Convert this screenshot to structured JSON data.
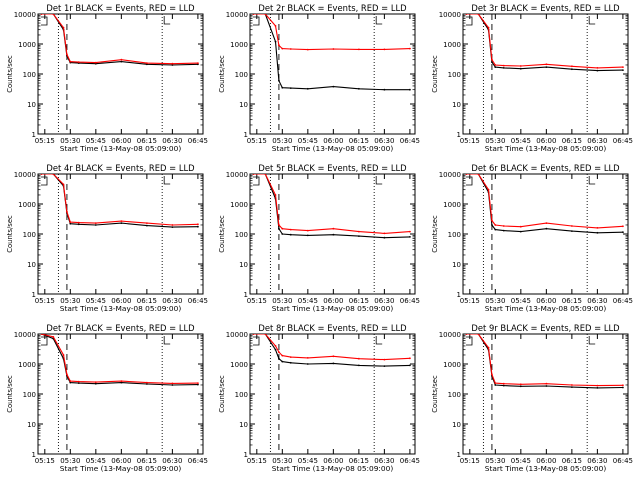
{
  "colors": {
    "events": "#000000",
    "lld": "#ff0000",
    "background": "#ffffff"
  },
  "chart_data": [
    {
      "type": "line",
      "title": "Det 1r BLACK = Events, RED = LLD",
      "xlabel": "Start Time (13-May-08 05:09:00)",
      "ylabel": "Counts/sec",
      "x_ticks": [
        "05:15",
        "05:30",
        "05:45",
        "06:00",
        "06:15",
        "06:30",
        "06:45"
      ],
      "y_ticks": [
        "1",
        "10",
        "100",
        "1000",
        "10000"
      ],
      "y_scale": "log",
      "ylim": [
        1,
        10000
      ],
      "x": [
        "05:13",
        "05:20",
        "05:26",
        "05:28",
        "05:30",
        "05:35",
        "05:45",
        "06:00",
        "06:15",
        "06:30",
        "06:45"
      ],
      "series": [
        {
          "name": "Events",
          "color": "#000000",
          "values": [
            10000,
            10000,
            3000,
            400,
            240,
            230,
            220,
            260,
            210,
            200,
            210
          ]
        },
        {
          "name": "LLD",
          "color": "#ff0000",
          "values": [
            10000,
            10000,
            3500,
            450,
            260,
            250,
            240,
            300,
            230,
            220,
            230
          ]
        }
      ]
    },
    {
      "type": "line",
      "title": "Det 2r BLACK = Events, RED = LLD",
      "xlabel": "Start Time (13-May-08 05:09:00)",
      "ylabel": "Counts/sec",
      "x_ticks": [
        "05:15",
        "05:30",
        "05:45",
        "06:00",
        "06:15",
        "06:30",
        "06:45"
      ],
      "y_ticks": [
        "1",
        "10",
        "100",
        "1000",
        "10000"
      ],
      "y_scale": "log",
      "ylim": [
        1,
        10000
      ],
      "x": [
        "05:13",
        "05:20",
        "05:26",
        "05:28",
        "05:30",
        "05:35",
        "05:45",
        "06:00",
        "06:15",
        "06:30",
        "06:45"
      ],
      "series": [
        {
          "name": "Events",
          "color": "#000000",
          "values": [
            10000,
            10000,
            1200,
            60,
            35,
            34,
            32,
            38,
            32,
            30,
            30
          ]
        },
        {
          "name": "LLD",
          "color": "#ff0000",
          "values": [
            10000,
            10000,
            4000,
            900,
            700,
            680,
            650,
            680,
            660,
            660,
            700
          ]
        }
      ]
    },
    {
      "type": "line",
      "title": "Det 3r BLACK = Events, RED = LLD",
      "xlabel": "Start Time (13-May-08 05:09:00)",
      "ylabel": "Counts/sec",
      "x_ticks": [
        "05:15",
        "05:30",
        "05:45",
        "06:00",
        "06:15",
        "06:30",
        "06:45"
      ],
      "y_ticks": [
        "1",
        "10",
        "100",
        "1000",
        "10000"
      ],
      "y_scale": "log",
      "ylim": [
        1,
        10000
      ],
      "x": [
        "05:13",
        "05:20",
        "05:26",
        "05:28",
        "05:30",
        "05:35",
        "05:45",
        "06:00",
        "06:15",
        "06:30",
        "06:45"
      ],
      "series": [
        {
          "name": "Events",
          "color": "#000000",
          "values": [
            10000,
            10000,
            3000,
            250,
            170,
            160,
            150,
            170,
            145,
            130,
            135
          ]
        },
        {
          "name": "LLD",
          "color": "#ff0000",
          "values": [
            10000,
            10000,
            3500,
            300,
            200,
            190,
            185,
            210,
            180,
            160,
            170
          ]
        }
      ]
    },
    {
      "type": "line",
      "title": "Det 4r BLACK = Events, RED = LLD",
      "xlabel": "Start Time (13-May-08 05:09:00)",
      "ylabel": "Counts/sec",
      "x_ticks": [
        "05:15",
        "05:30",
        "05:45",
        "06:00",
        "06:15",
        "06:30",
        "06:45"
      ],
      "y_ticks": [
        "1",
        "10",
        "100",
        "1000",
        "10000"
      ],
      "y_scale": "log",
      "ylim": [
        1,
        10000
      ],
      "x": [
        "05:13",
        "05:20",
        "05:26",
        "05:28",
        "05:30",
        "05:35",
        "05:45",
        "06:00",
        "06:15",
        "06:30",
        "06:45"
      ],
      "series": [
        {
          "name": "Events",
          "color": "#000000",
          "values": [
            10000,
            10000,
            4000,
            500,
            220,
            210,
            200,
            230,
            190,
            170,
            175
          ]
        },
        {
          "name": "LLD",
          "color": "#ff0000",
          "values": [
            10000,
            10000,
            4500,
            550,
            250,
            240,
            230,
            270,
            230,
            200,
            210
          ]
        }
      ]
    },
    {
      "type": "line",
      "title": "Det 5r BLACK = Events, RED = LLD",
      "xlabel": "Start Time (13-May-08 05:09:00)",
      "ylabel": "Counts/sec",
      "x_ticks": [
        "05:15",
        "05:30",
        "05:45",
        "06:00",
        "06:15",
        "06:30",
        "06:45"
      ],
      "y_ticks": [
        "1",
        "10",
        "100",
        "1000",
        "10000"
      ],
      "y_scale": "log",
      "ylim": [
        1,
        10000
      ],
      "x": [
        "05:13",
        "05:20",
        "05:26",
        "05:28",
        "05:30",
        "05:35",
        "05:45",
        "06:00",
        "06:15",
        "06:30",
        "06:45"
      ],
      "series": [
        {
          "name": "Events",
          "color": "#000000",
          "values": [
            10000,
            10000,
            1500,
            150,
            100,
            95,
            90,
            95,
            85,
            75,
            80
          ]
        },
        {
          "name": "LLD",
          "color": "#ff0000",
          "values": [
            10000,
            10000,
            2000,
            200,
            150,
            140,
            130,
            150,
            120,
            105,
            120
          ]
        }
      ]
    },
    {
      "type": "line",
      "title": "Det 6r BLACK = Events, RED = LLD",
      "xlabel": "Start Time (13-May-08 05:09:00)",
      "ylabel": "Counts/sec",
      "x_ticks": [
        "05:15",
        "05:30",
        "05:45",
        "06:00",
        "06:15",
        "06:30",
        "06:45"
      ],
      "y_ticks": [
        "1",
        "10",
        "100",
        "1000",
        "10000"
      ],
      "y_scale": "log",
      "ylim": [
        1,
        10000
      ],
      "x": [
        "05:13",
        "05:20",
        "05:26",
        "05:28",
        "05:30",
        "05:35",
        "05:45",
        "06:00",
        "06:15",
        "06:30",
        "06:45"
      ],
      "series": [
        {
          "name": "Events",
          "color": "#000000",
          "values": [
            10000,
            10000,
            2500,
            200,
            140,
            130,
            120,
            150,
            125,
            110,
            115
          ]
        },
        {
          "name": "LLD",
          "color": "#ff0000",
          "values": [
            10000,
            10000,
            3000,
            280,
            200,
            185,
            175,
            230,
            185,
            160,
            180
          ]
        }
      ]
    },
    {
      "type": "line",
      "title": "Det 7r BLACK = Events, RED = LLD",
      "xlabel": "Start Time (13-May-08 05:09:00)",
      "ylabel": "Counts/sec",
      "x_ticks": [
        "05:15",
        "05:30",
        "05:45",
        "06:00",
        "06:15",
        "06:30",
        "06:45"
      ],
      "y_ticks": [
        "1",
        "10",
        "100",
        "1000",
        "10000"
      ],
      "y_scale": "log",
      "ylim": [
        1,
        10000
      ],
      "x": [
        "05:13",
        "05:20",
        "05:26",
        "05:28",
        "05:30",
        "05:35",
        "05:45",
        "06:00",
        "06:15",
        "06:30",
        "06:45"
      ],
      "series": [
        {
          "name": "Events",
          "color": "#000000",
          "values": [
            10000,
            7000,
            1500,
            400,
            240,
            230,
            220,
            240,
            215,
            200,
            205
          ]
        },
        {
          "name": "LLD",
          "color": "#ff0000",
          "values": [
            10000,
            8000,
            2000,
            450,
            270,
            260,
            250,
            270,
            240,
            225,
            230
          ]
        }
      ]
    },
    {
      "type": "line",
      "title": "Det 8r BLACK = Events, RED = LLD",
      "xlabel": "Start Time (13-May-08 05:09:00)",
      "ylabel": "Counts/sec",
      "x_ticks": [
        "05:15",
        "05:30",
        "05:45",
        "06:00",
        "06:15",
        "06:30",
        "06:45"
      ],
      "y_ticks": [
        "1",
        "10",
        "100",
        "1000",
        "10000"
      ],
      "y_scale": "log",
      "ylim": [
        1,
        10000
      ],
      "x": [
        "05:13",
        "05:20",
        "05:26",
        "05:28",
        "05:30",
        "05:35",
        "05:45",
        "06:00",
        "06:15",
        "06:30",
        "06:45"
      ],
      "series": [
        {
          "name": "Events",
          "color": "#000000",
          "values": [
            10000,
            10000,
            3000,
            1500,
            1200,
            1100,
            1000,
            1050,
            900,
            850,
            900
          ]
        },
        {
          "name": "LLD",
          "color": "#ff0000",
          "values": [
            10000,
            10000,
            4000,
            2500,
            1900,
            1700,
            1600,
            1800,
            1500,
            1400,
            1550
          ]
        }
      ]
    },
    {
      "type": "line",
      "title": "Det 9r BLACK = Events, RED = LLD",
      "xlabel": "Start Time (13-May-08 05:09:00)",
      "ylabel": "Counts/sec",
      "x_ticks": [
        "05:15",
        "05:30",
        "05:45",
        "06:00",
        "06:15",
        "06:30",
        "06:45"
      ],
      "y_ticks": [
        "1",
        "10",
        "100",
        "1000",
        "10000"
      ],
      "y_scale": "log",
      "ylim": [
        1,
        10000
      ],
      "x": [
        "05:13",
        "05:20",
        "05:26",
        "05:28",
        "05:30",
        "05:35",
        "05:45",
        "06:00",
        "06:15",
        "06:30",
        "06:45"
      ],
      "series": [
        {
          "name": "Events",
          "color": "#000000",
          "values": [
            10000,
            10000,
            3000,
            400,
            200,
            190,
            180,
            185,
            170,
            160,
            165
          ]
        },
        {
          "name": "LLD",
          "color": "#ff0000",
          "values": [
            10000,
            10000,
            3500,
            450,
            230,
            220,
            210,
            220,
            200,
            190,
            195
          ]
        }
      ]
    }
  ]
}
